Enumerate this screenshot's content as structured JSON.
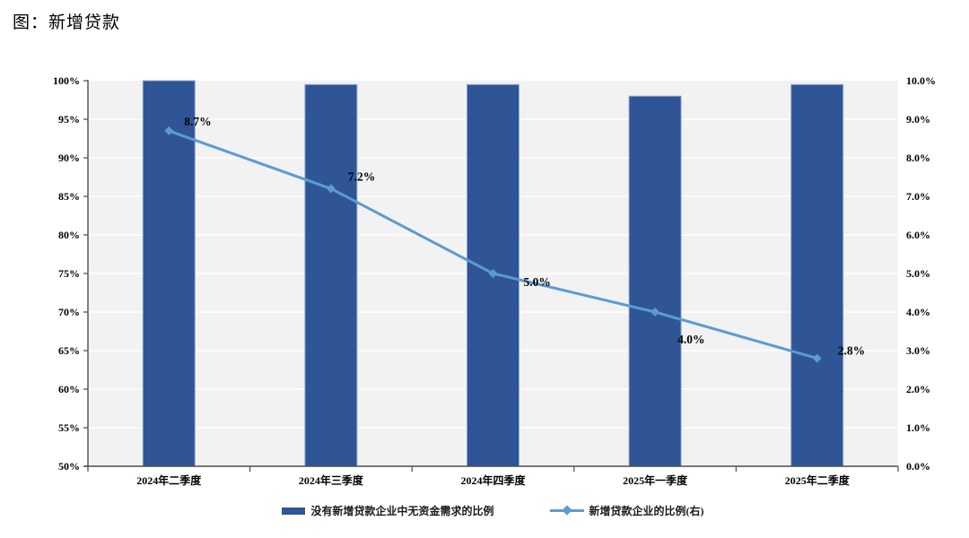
{
  "page": {
    "title": "图：新增贷款"
  },
  "chart_data": {
    "type": "combo-bar-line",
    "categories": [
      "2024年二季度",
      "2024年三季度",
      "2024年四季度",
      "2025年一季度",
      "2025年二季度"
    ],
    "series": [
      {
        "name": "没有新增贷款企业中无资金需求的比例",
        "type": "bar",
        "axis": "left",
        "values": [
          100,
          99.5,
          99.5,
          98,
          99.5
        ],
        "color": "#2F5596",
        "border_color": "#93A9CE"
      },
      {
        "name": "新增贷款企业的比例(右)",
        "type": "line",
        "axis": "right",
        "values": [
          8.7,
          7.2,
          5.0,
          4.0,
          2.8
        ],
        "data_labels": [
          "8.7%",
          "7.2%",
          "5.0%",
          "4.0%",
          "2.8%"
        ],
        "color": "#5B9BD5"
      }
    ],
    "left_axis": {
      "min": 50,
      "max": 100,
      "step": 5,
      "tick_labels": [
        "100%",
        "95%",
        "90%",
        "85%",
        "80%",
        "75%",
        "70%",
        "65%",
        "60%",
        "55%",
        "50%"
      ]
    },
    "right_axis": {
      "min": 0,
      "max": 10,
      "step": 1,
      "tick_labels": [
        "10.0%",
        "9.0%",
        "8.0%",
        "7.0%",
        "6.0%",
        "5.0%",
        "4.0%",
        "3.0%",
        "2.0%",
        "1.0%",
        "0.0%"
      ]
    },
    "grid": true,
    "legend_position": "bottom",
    "plot_bg": "#F2F2F2",
    "grid_color": "#FFFFFF",
    "axis_color": "#4d4d4d",
    "label_color": "#000000"
  }
}
